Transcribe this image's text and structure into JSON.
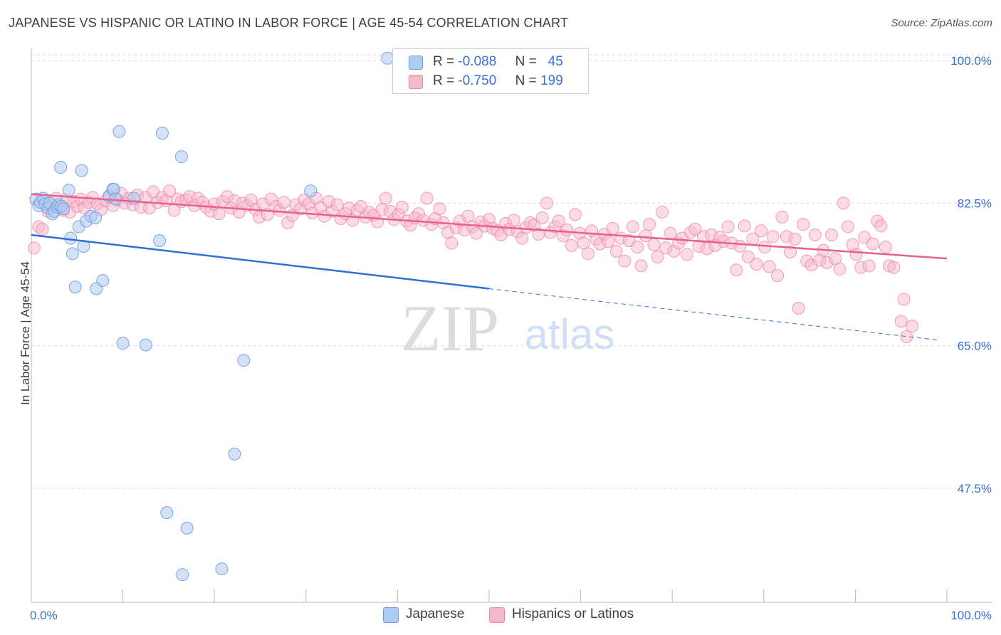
{
  "title": "JAPANESE VS HISPANIC OR LATINO IN LABOR FORCE | AGE 45-54 CORRELATION CHART",
  "source": "Source: ZipAtlas.com",
  "watermark": {
    "zip": "ZIP",
    "atlas": "atlas"
  },
  "legend": {
    "japanese": {
      "r_label": "R =",
      "r_value": "-0.088",
      "n_label": "N =",
      "n_value": "45"
    },
    "hispanic": {
      "r_label": "R =",
      "r_value": "-0.750",
      "n_label": "N =",
      "n_value": "199"
    }
  },
  "colors": {
    "japanese_fill": "#aecbf2",
    "japanese_stroke": "#6f9bd8",
    "japanese_line": "#2f6fd6",
    "hispanic_fill": "#f7b8cb",
    "hispanic_stroke": "#ee86a6",
    "hispanic_line": "#e8608c",
    "tick_label": "#3a6fd8",
    "grid": "#d9d9d9"
  },
  "chart_data": {
    "type": "scatter",
    "xlabel": "",
    "ylabel": "In Labor Force | Age 45-54",
    "x_tick_labels": [
      "0.0%",
      "100.0%"
    ],
    "y_tick_labels": [
      "100.0%",
      "82.5%",
      "65.0%",
      "47.5%"
    ],
    "xlim": [
      0,
      100
    ],
    "ylim": [
      33.5,
      101.5
    ],
    "y_ticks": [
      100,
      82.5,
      65,
      47.5
    ],
    "grid": true,
    "series": [
      {
        "name": "Japanese",
        "points": [
          [
            0.5,
            83.0
          ],
          [
            0.8,
            82.2
          ],
          [
            1.0,
            82.6
          ],
          [
            1.3,
            83.1
          ],
          [
            1.5,
            82.4
          ],
          [
            1.8,
            81.9
          ],
          [
            2.0,
            82.5
          ],
          [
            2.3,
            81.2
          ],
          [
            2.5,
            81.5
          ],
          [
            2.8,
            82.0
          ],
          [
            3.0,
            82.3
          ],
          [
            3.3,
            82.1
          ],
          [
            3.5,
            81.8
          ],
          [
            3.2,
            86.9
          ],
          [
            4.1,
            84.1
          ],
          [
            4.3,
            78.2
          ],
          [
            4.5,
            76.3
          ],
          [
            4.8,
            72.2
          ],
          [
            5.2,
            79.6
          ],
          [
            5.5,
            86.5
          ],
          [
            5.7,
            77.2
          ],
          [
            6.0,
            80.3
          ],
          [
            6.5,
            80.9
          ],
          [
            7.1,
            72.0
          ],
          [
            7.0,
            80.7
          ],
          [
            7.8,
            73.0
          ],
          [
            8.5,
            83.3
          ],
          [
            8.9,
            84.2
          ],
          [
            9.0,
            84.2
          ],
          [
            9.2,
            83.0
          ],
          [
            9.6,
            91.3
          ],
          [
            10.0,
            65.3
          ],
          [
            11.2,
            83.1
          ],
          [
            12.5,
            65.1
          ],
          [
            14.0,
            77.9
          ],
          [
            14.3,
            91.1
          ],
          [
            14.8,
            44.5
          ],
          [
            16.4,
            88.2
          ],
          [
            16.5,
            36.9
          ],
          [
            17.0,
            42.6
          ],
          [
            20.8,
            37.6
          ],
          [
            22.2,
            51.7
          ],
          [
            23.2,
            63.2
          ],
          [
            30.5,
            84.0
          ],
          [
            38.9,
            100.3
          ]
        ]
      },
      {
        "name": "Hispanics or Latinos",
        "points": [
          [
            0.3,
            77.0
          ],
          [
            0.8,
            79.6
          ],
          [
            1.2,
            79.3
          ],
          [
            1.8,
            81.5
          ],
          [
            2.3,
            82.3
          ],
          [
            2.7,
            83.1
          ],
          [
            3.1,
            82.0
          ],
          [
            3.5,
            81.6
          ],
          [
            3.8,
            82.9
          ],
          [
            4.2,
            81.4
          ],
          [
            4.6,
            82.7
          ],
          [
            5.0,
            82.1
          ],
          [
            5.4,
            83.0
          ],
          [
            5.8,
            81.9
          ],
          [
            6.3,
            82.6
          ],
          [
            6.7,
            83.2
          ],
          [
            7.2,
            82.4
          ],
          [
            7.6,
            81.7
          ],
          [
            8.1,
            82.8
          ],
          [
            8.5,
            83.4
          ],
          [
            8.9,
            82.2
          ],
          [
            9.4,
            82.9
          ],
          [
            9.8,
            83.7
          ],
          [
            10.2,
            82.5
          ],
          [
            10.7,
            83.1
          ],
          [
            11.1,
            82.3
          ],
          [
            11.6,
            83.5
          ],
          [
            12.0,
            82.0
          ],
          [
            12.5,
            83.2
          ],
          [
            12.9,
            81.9
          ],
          [
            13.3,
            83.9
          ],
          [
            13.8,
            82.6
          ],
          [
            14.3,
            83.2
          ],
          [
            14.7,
            82.8
          ],
          [
            15.1,
            84.0
          ],
          [
            15.6,
            81.6
          ],
          [
            16.0,
            83.0
          ],
          [
            16.4,
            82.7
          ],
          [
            16.9,
            82.9
          ],
          [
            17.3,
            83.3
          ],
          [
            17.8,
            82.2
          ],
          [
            18.2,
            83.1
          ],
          [
            18.7,
            82.6
          ],
          [
            19.1,
            82.0
          ],
          [
            19.6,
            81.5
          ],
          [
            20.0,
            82.4
          ],
          [
            20.5,
            81.2
          ],
          [
            20.9,
            82.7
          ],
          [
            21.4,
            83.3
          ],
          [
            21.8,
            81.9
          ],
          [
            22.2,
            82.8
          ],
          [
            22.7,
            81.4
          ],
          [
            23.1,
            82.5
          ],
          [
            23.6,
            82.2
          ],
          [
            24.0,
            82.9
          ],
          [
            24.5,
            81.7
          ],
          [
            24.9,
            80.8
          ],
          [
            25.3,
            82.4
          ],
          [
            25.8,
            81.1
          ],
          [
            26.2,
            83.0
          ],
          [
            26.7,
            82.1
          ],
          [
            27.1,
            81.6
          ],
          [
            27.6,
            82.6
          ],
          [
            28.0,
            80.1
          ],
          [
            28.5,
            81.0
          ],
          [
            28.9,
            82.3
          ],
          [
            29.4,
            81.8
          ],
          [
            29.8,
            82.9
          ],
          [
            30.3,
            82.4
          ],
          [
            30.7,
            81.3
          ],
          [
            31.1,
            83.1
          ],
          [
            31.6,
            82.0
          ],
          [
            32.0,
            80.9
          ],
          [
            32.5,
            82.7
          ],
          [
            32.9,
            81.5
          ],
          [
            33.4,
            82.3
          ],
          [
            33.8,
            80.6
          ],
          [
            34.3,
            81.2
          ],
          [
            34.7,
            81.9
          ],
          [
            35.1,
            80.4
          ],
          [
            35.6,
            81.6
          ],
          [
            36.0,
            82.1
          ],
          [
            36.5,
            80.8
          ],
          [
            36.9,
            81.4
          ],
          [
            37.4,
            81.0
          ],
          [
            37.8,
            80.2
          ],
          [
            38.3,
            81.7
          ],
          [
            38.7,
            83.1
          ],
          [
            39.2,
            81.5
          ],
          [
            39.6,
            80.5
          ],
          [
            40.1,
            81.1
          ],
          [
            40.5,
            82.0
          ],
          [
            41.0,
            80.3
          ],
          [
            41.4,
            79.8
          ],
          [
            41.9,
            80.7
          ],
          [
            42.3,
            81.2
          ],
          [
            42.8,
            80.4
          ],
          [
            43.2,
            83.1
          ],
          [
            43.7,
            79.9
          ],
          [
            44.1,
            80.6
          ],
          [
            44.6,
            81.8
          ],
          [
            45.0,
            80.1
          ],
          [
            45.5,
            78.9
          ],
          [
            45.9,
            77.6
          ],
          [
            46.4,
            79.5
          ],
          [
            46.8,
            80.3
          ],
          [
            47.3,
            79.2
          ],
          [
            47.7,
            80.9
          ],
          [
            48.2,
            79.6
          ],
          [
            48.6,
            78.8
          ],
          [
            49.1,
            80.2
          ],
          [
            49.5,
            79.7
          ],
          [
            50.0,
            80.5
          ],
          [
            50.4,
            79.4
          ],
          [
            50.9,
            79.1
          ],
          [
            51.3,
            78.6
          ],
          [
            51.8,
            80.0
          ],
          [
            52.2,
            79.3
          ],
          [
            52.7,
            80.4
          ],
          [
            53.1,
            79.0
          ],
          [
            53.6,
            78.2
          ],
          [
            54.0,
            79.5
          ],
          [
            54.5,
            80.1
          ],
          [
            54.9,
            79.8
          ],
          [
            55.4,
            78.7
          ],
          [
            55.8,
            80.7
          ],
          [
            56.3,
            82.5
          ],
          [
            56.7,
            78.9
          ],
          [
            57.2,
            79.6
          ],
          [
            57.6,
            80.3
          ],
          [
            58.1,
            78.5
          ],
          [
            58.5,
            79.2
          ],
          [
            59.0,
            77.3
          ],
          [
            59.4,
            81.1
          ],
          [
            59.9,
            78.8
          ],
          [
            60.3,
            77.6
          ],
          [
            60.8,
            76.3
          ],
          [
            61.2,
            79.1
          ],
          [
            61.7,
            78.1
          ],
          [
            62.1,
            77.5
          ],
          [
            62.6,
            78.7
          ],
          [
            63.0,
            77.8
          ],
          [
            63.5,
            79.4
          ],
          [
            63.9,
            76.6
          ],
          [
            64.4,
            78.2
          ],
          [
            64.8,
            75.4
          ],
          [
            65.3,
            77.9
          ],
          [
            65.7,
            79.6
          ],
          [
            66.2,
            77.1
          ],
          [
            66.6,
            74.8
          ],
          [
            67.1,
            78.5
          ],
          [
            67.5,
            79.9
          ],
          [
            68.0,
            77.4
          ],
          [
            68.4,
            75.9
          ],
          [
            68.9,
            81.4
          ],
          [
            69.3,
            77.0
          ],
          [
            69.8,
            78.8
          ],
          [
            70.2,
            76.6
          ],
          [
            70.7,
            77.6
          ],
          [
            71.1,
            78.2
          ],
          [
            71.6,
            76.2
          ],
          [
            72.0,
            78.9
          ],
          [
            72.5,
            79.3
          ],
          [
            72.9,
            77.2
          ],
          [
            73.4,
            78.4
          ],
          [
            73.8,
            76.9
          ],
          [
            74.3,
            78.6
          ],
          [
            74.7,
            77.3
          ],
          [
            75.2,
            78.3
          ],
          [
            75.6,
            77.8
          ],
          [
            76.1,
            79.6
          ],
          [
            76.5,
            77.6
          ],
          [
            77.0,
            74.3
          ],
          [
            77.4,
            77.2
          ],
          [
            77.9,
            79.7
          ],
          [
            78.3,
            75.9
          ],
          [
            78.8,
            78.1
          ],
          [
            79.2,
            75.0
          ],
          [
            79.7,
            79.1
          ],
          [
            80.1,
            77.1
          ],
          [
            80.6,
            74.7
          ],
          [
            81.0,
            78.4
          ],
          [
            81.5,
            73.6
          ],
          [
            82.0,
            80.8
          ],
          [
            82.5,
            78.4
          ],
          [
            82.9,
            76.5
          ],
          [
            83.4,
            78.1
          ],
          [
            83.8,
            69.6
          ],
          [
            84.3,
            79.9
          ],
          [
            84.7,
            75.4
          ],
          [
            85.2,
            74.9
          ],
          [
            85.6,
            78.6
          ],
          [
            86.1,
            75.5
          ],
          [
            86.5,
            76.7
          ],
          [
            86.9,
            75.2
          ],
          [
            87.4,
            78.6
          ],
          [
            87.8,
            75.7
          ],
          [
            88.3,
            74.4
          ],
          [
            88.7,
            82.5
          ],
          [
            89.2,
            79.6
          ],
          [
            89.7,
            77.4
          ],
          [
            90.1,
            76.2
          ],
          [
            90.6,
            74.6
          ],
          [
            91.0,
            78.3
          ],
          [
            91.5,
            74.8
          ],
          [
            91.9,
            77.5
          ],
          [
            92.4,
            80.3
          ],
          [
            92.8,
            79.7
          ],
          [
            93.3,
            77.1
          ],
          [
            93.7,
            74.8
          ],
          [
            94.2,
            74.6
          ],
          [
            95.0,
            68.0
          ],
          [
            95.3,
            70.7
          ],
          [
            95.6,
            66.1
          ],
          [
            96.2,
            67.4
          ]
        ]
      }
    ],
    "trend_lines": [
      {
        "series": "Japanese",
        "x_from": 0,
        "y_from": 78.6,
        "x_to": 50,
        "y_to": 72.0,
        "dashed_to_x": 99,
        "dashed_to_y": 65.7
      },
      {
        "series": "Hispanics or Latinos",
        "x_from": 0,
        "y_from": 83.6,
        "x_to": 100,
        "y_to": 75.7
      }
    ]
  }
}
